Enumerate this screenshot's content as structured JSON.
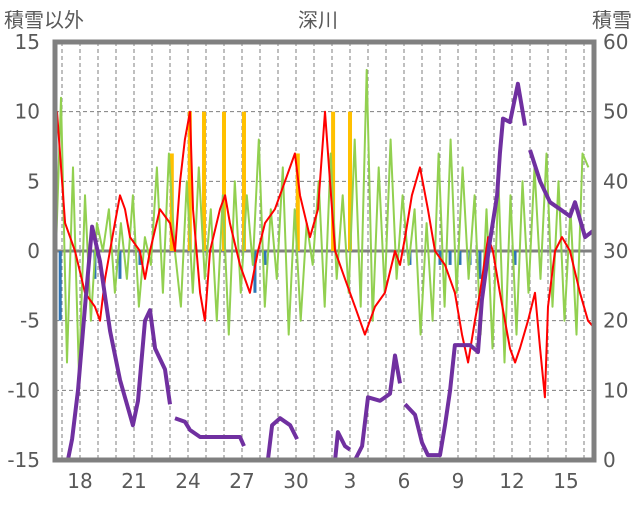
{
  "chart_data": {
    "type": "line",
    "title": "深川",
    "ylabel_left": "積雪以外",
    "ylabel_right": "積雪",
    "x_unit": "day offset from the 18th",
    "xlim": [
      -1.39,
      28.56
    ],
    "x_ticks": [
      {
        "x": 0,
        "label": "18"
      },
      {
        "x": 3,
        "label": "21"
      },
      {
        "x": 6,
        "label": "24"
      },
      {
        "x": 9,
        "label": "27"
      },
      {
        "x": 12,
        "label": "30"
      },
      {
        "x": 15,
        "label": "3"
      },
      {
        "x": 18,
        "label": "6"
      },
      {
        "x": 21,
        "label": "9"
      },
      {
        "x": 24,
        "label": "12"
      },
      {
        "x": 27,
        "label": "15"
      }
    ],
    "y_left": {
      "range": [
        -15,
        15
      ],
      "ticks": [
        -15,
        -10,
        -5,
        0,
        5,
        10,
        15
      ]
    },
    "y_right": {
      "range": [
        0,
        60
      ],
      "ticks": [
        0,
        10,
        20,
        30,
        40,
        50,
        60
      ]
    },
    "grid": true,
    "colors": {
      "snow": "#7030a0",
      "red": "#ff0000",
      "green": "#92d050",
      "orange": "#ffc000",
      "blue": "#2e75b6",
      "frame": "#808080",
      "zero": "#7f7f7f"
    },
    "snow_depth": [
      [
        -1.39,
        0
      ],
      [
        -0.67,
        0
      ],
      [
        -0.44,
        3
      ],
      [
        -0.11,
        10
      ],
      [
        0.28,
        22
      ],
      [
        0.67,
        33.5
      ],
      [
        1.11,
        28.5
      ],
      [
        1.67,
        18.5
      ],
      [
        2.22,
        11.5
      ],
      [
        2.94,
        5
      ],
      [
        3.22,
        8.5
      ],
      [
        3.61,
        20
      ],
      [
        3.89,
        21.5
      ],
      [
        4.17,
        16
      ],
      [
        4.72,
        13
      ],
      [
        5,
        8
      ],
      null,
      [
        5.28,
        6
      ],
      [
        5.83,
        5.5
      ],
      [
        6.11,
        4.3
      ],
      [
        6.67,
        3.3
      ],
      [
        8.89,
        3.3
      ],
      [
        9.11,
        2
      ],
      null,
      [
        9.44,
        0
      ],
      [
        10.44,
        0
      ],
      [
        10.67,
        5
      ],
      [
        11.11,
        6
      ],
      [
        11.67,
        5
      ],
      [
        12.06,
        3
      ],
      null,
      [
        12.22,
        0
      ],
      [
        14.17,
        0
      ],
      [
        14.33,
        4
      ],
      [
        14.72,
        2
      ],
      [
        15,
        1.5
      ],
      null,
      [
        15.28,
        0
      ],
      [
        15.67,
        2
      ],
      [
        16,
        9
      ],
      [
        16.67,
        8.5
      ],
      [
        17.22,
        9.5
      ],
      [
        17.5,
        15
      ],
      [
        17.78,
        11
      ],
      null,
      [
        18.06,
        8
      ],
      [
        18.61,
        6.5
      ],
      [
        19,
        2.5
      ],
      [
        19.33,
        0.7
      ],
      [
        20,
        0.7
      ],
      [
        20.28,
        5
      ],
      [
        20.56,
        10
      ],
      [
        20.83,
        16.5
      ],
      [
        21.67,
        16.5
      ],
      [
        22.11,
        15.5
      ],
      [
        22.33,
        23
      ],
      [
        22.78,
        31.5
      ],
      [
        23.17,
        38
      ],
      [
        23.33,
        44
      ],
      [
        23.5,
        49
      ],
      [
        23.89,
        48.5
      ],
      [
        24.33,
        54
      ],
      [
        24.72,
        48
      ],
      null,
      [
        25,
        44.5
      ],
      [
        25.56,
        40
      ],
      [
        26.11,
        37
      ],
      [
        26.67,
        36
      ],
      [
        27.22,
        35
      ],
      [
        27.5,
        37
      ],
      [
        28.06,
        32
      ],
      [
        28.56,
        33
      ]
    ],
    "red_series": [
      [
        -1.39,
        5
      ],
      [
        -1.28,
        10
      ],
      [
        -0.83,
        2
      ],
      [
        -0.28,
        0
      ],
      [
        0.28,
        -3
      ],
      [
        0.83,
        -4
      ],
      [
        1.11,
        -5
      ],
      [
        1.39,
        -2
      ],
      [
        1.94,
        2
      ],
      [
        2.22,
        4
      ],
      [
        2.5,
        3
      ],
      [
        2.78,
        1
      ],
      [
        3.33,
        0
      ],
      [
        3.61,
        -2
      ],
      [
        3.89,
        0
      ],
      [
        4.44,
        3
      ],
      [
        5,
        2
      ],
      [
        5.28,
        0
      ],
      [
        5.56,
        5
      ],
      [
        5.83,
        8
      ],
      [
        6.11,
        10
      ],
      [
        6.28,
        3
      ],
      [
        6.67,
        -3
      ],
      [
        6.94,
        -5
      ],
      [
        7.22,
        0
      ],
      [
        7.78,
        3
      ],
      [
        8.06,
        4
      ],
      [
        8.33,
        2
      ],
      [
        8.89,
        -1
      ],
      [
        9.44,
        -3
      ],
      [
        9.89,
        0
      ],
      [
        10.28,
        2
      ],
      [
        10.83,
        3
      ],
      [
        11.39,
        5
      ],
      [
        11.94,
        7
      ],
      [
        12.22,
        4
      ],
      [
        12.78,
        1
      ],
      [
        13.22,
        3
      ],
      [
        13.61,
        10
      ],
      [
        13.89,
        5
      ],
      [
        14.17,
        0
      ],
      [
        14.72,
        -2
      ],
      [
        15.28,
        -4
      ],
      [
        15.83,
        -6
      ],
      [
        16.39,
        -4
      ],
      [
        16.94,
        -3
      ],
      [
        17.5,
        0
      ],
      [
        17.78,
        -1
      ],
      [
        18.06,
        1
      ],
      [
        18.44,
        4
      ],
      [
        18.89,
        6
      ],
      [
        19.33,
        3
      ],
      [
        19.72,
        0
      ],
      [
        20.28,
        -1
      ],
      [
        20.83,
        -3
      ],
      [
        21.22,
        -6
      ],
      [
        21.56,
        -8
      ],
      [
        21.94,
        -5
      ],
      [
        22.22,
        -3
      ],
      [
        22.67,
        1
      ],
      [
        22.94,
        0
      ],
      [
        23.33,
        -3
      ],
      [
        23.89,
        -7
      ],
      [
        24.17,
        -8
      ],
      [
        24.44,
        -7
      ],
      [
        24.89,
        -5
      ],
      [
        25.28,
        -3
      ],
      [
        25.56,
        -7
      ],
      [
        25.83,
        -10.5
      ],
      [
        26,
        -4
      ],
      [
        26.39,
        0
      ],
      [
        26.78,
        1
      ],
      [
        27.22,
        0
      ],
      [
        27.78,
        -3
      ],
      [
        28.22,
        -5
      ],
      [
        28.56,
        -5.5
      ]
    ],
    "green_series": {
      "x_start": -1.39,
      "x_step": 0.333,
      "values": [
        -2,
        11,
        -8,
        6,
        -9,
        4,
        -5,
        2,
        0,
        3,
        -3,
        2,
        -2,
        4,
        -4,
        1,
        -1,
        6,
        -3,
        7,
        0,
        -4,
        5,
        -3,
        6,
        -2,
        3,
        -5,
        4,
        -6,
        5,
        -3,
        4,
        -1,
        8,
        -4,
        3,
        -2,
        6,
        -6,
        3,
        -5,
        2,
        -1,
        5,
        -4,
        7,
        -2,
        4,
        -3,
        8,
        -4,
        13,
        -5,
        6,
        -3,
        8,
        -2,
        4,
        -1,
        3,
        -6,
        2,
        -5,
        7,
        -4,
        8,
        -3,
        6,
        -2,
        4,
        -6,
        3,
        -7,
        5,
        -8,
        4,
        -6,
        5,
        -3,
        6,
        -2,
        7,
        -4,
        5,
        -5,
        3,
        -6,
        7,
        6
      ]
    },
    "orange_bars": [
      [
        5.1,
        7
      ],
      [
        6.1,
        10
      ],
      [
        6.89,
        10
      ],
      [
        8,
        10
      ],
      [
        9.11,
        10
      ],
      [
        12.1,
        7
      ],
      [
        14.06,
        10
      ],
      [
        15,
        10
      ]
    ],
    "blue_bars": [
      [
        -1.1,
        -5
      ],
      [
        0.83,
        -2
      ],
      [
        2.22,
        -2
      ],
      [
        3.33,
        -1
      ],
      [
        9.72,
        -3
      ],
      [
        10.28,
        -1
      ],
      [
        18.33,
        -1
      ],
      [
        20,
        -1
      ],
      [
        20.56,
        -1
      ],
      [
        21.11,
        -1
      ],
      [
        21.67,
        -1
      ],
      [
        22.22,
        -2
      ],
      [
        24.17,
        -1
      ]
    ]
  }
}
